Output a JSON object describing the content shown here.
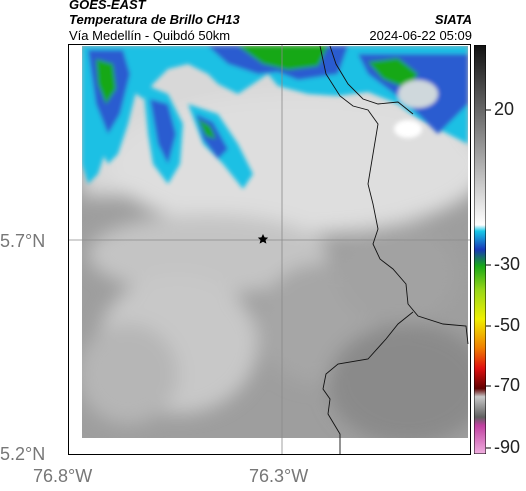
{
  "header": {
    "satellite": "GOES-EAST",
    "product": "Temperatura de Brillo CH13",
    "route": "Vía Medellín - Quibdó 50km",
    "organization": "SIATA",
    "datetime": "2024-06-22 05:09"
  },
  "map": {
    "lat_ticks": [
      "5.7°N",
      "5.2°N"
    ],
    "lon_ticks": [
      "76.8°W",
      "76.3°W"
    ],
    "marker_icon": "star-icon"
  },
  "colorbar": {
    "labels": [
      "20",
      "-30",
      "-50",
      "-70",
      "-90"
    ],
    "colors": {
      "warm_gray_top": "#1a1a1a",
      "mid_gray": "#b0b0b0",
      "cyan": "#18c8e8",
      "blue": "#1838b8",
      "green": "#18a818",
      "yellow": "#f0f000",
      "orange": "#f08000",
      "red": "#e01010",
      "dark_red": "#600000",
      "magenta": "#c040a0"
    }
  }
}
